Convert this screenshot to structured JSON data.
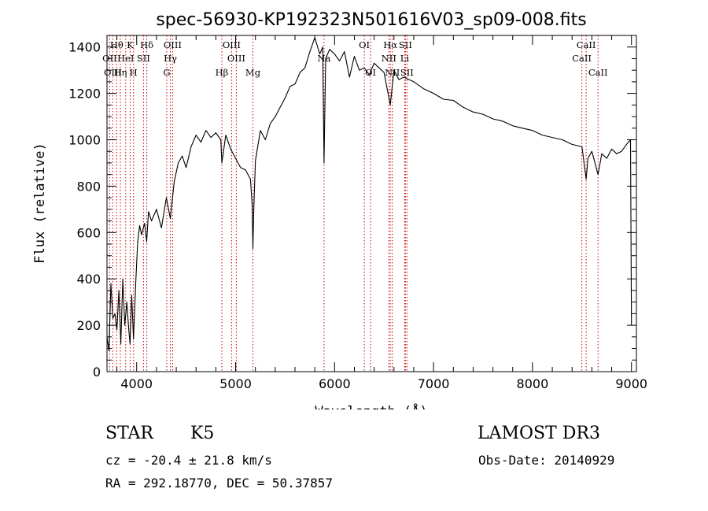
{
  "chart_data": {
    "type": "line",
    "title": "spec-56930-KP192323N501616V03_sp09-008.fits",
    "xlabel": "Wavelength (Å)",
    "ylabel": "Flux (relative)",
    "xlim": [
      3700,
      9050
    ],
    "ylim": [
      0,
      1450
    ],
    "xticks": [
      4000,
      5000,
      6000,
      7000,
      8000,
      9000
    ],
    "yticks": [
      0,
      200,
      400,
      600,
      800,
      1000,
      1200,
      1400
    ],
    "grid": false,
    "series": [
      {
        "x": [
          3700,
          3720,
          3740,
          3760,
          3780,
          3800,
          3820,
          3840,
          3860,
          3880,
          3900,
          3920,
          3933,
          3950,
          3968,
          3990,
          4010,
          4030,
          4050,
          4080,
          4101,
          4120,
          4150,
          4200,
          4250,
          4300,
          4340,
          4380,
          4420,
          4460,
          4500,
          4550,
          4600,
          4650,
          4700,
          4750,
          4800,
          4850,
          4861,
          4900,
          4950,
          5000,
          5050,
          5100,
          5150,
          5167,
          5175,
          5183,
          5200,
          5250,
          5300,
          5350,
          5400,
          5450,
          5500,
          5550,
          5600,
          5650,
          5700,
          5750,
          5800,
          5850,
          5880,
          5893,
          5910,
          5950,
          6000,
          6050,
          6100,
          6150,
          6200,
          6250,
          6300,
          6350,
          6400,
          6450,
          6500,
          6563,
          6600,
          6650,
          6700,
          6750,
          6800,
          6900,
          7000,
          7100,
          7200,
          7300,
          7400,
          7500,
          7600,
          7700,
          7800,
          7900,
          8000,
          8100,
          8200,
          8300,
          8400,
          8500,
          8542,
          8560,
          8600,
          8662,
          8700,
          8750,
          8800,
          8850,
          8900,
          8950,
          8990,
          9000
        ],
        "y": [
          150,
          90,
          380,
          230,
          250,
          180,
          350,
          120,
          400,
          200,
          300,
          180,
          120,
          330,
          140,
          380,
          560,
          630,
          590,
          640,
          560,
          690,
          650,
          700,
          620,
          750,
          660,
          820,
          900,
          930,
          880,
          970,
          1020,
          990,
          1040,
          1010,
          1030,
          1000,
          900,
          1020,
          960,
          920,
          880,
          870,
          830,
          720,
          530,
          700,
          910,
          1040,
          1000,
          1070,
          1100,
          1140,
          1180,
          1230,
          1240,
          1290,
          1310,
          1380,
          1440,
          1370,
          1400,
          900,
          1350,
          1390,
          1370,
          1340,
          1380,
          1270,
          1360,
          1300,
          1310,
          1280,
          1330,
          1310,
          1290,
          1150,
          1300,
          1260,
          1270,
          1260,
          1250,
          1220,
          1200,
          1175,
          1170,
          1140,
          1120,
          1110,
          1090,
          1080,
          1060,
          1050,
          1040,
          1020,
          1010,
          1000,
          980,
          970,
          830,
          920,
          950,
          850,
          940,
          920,
          960,
          940,
          950,
          980,
          1000,
          200
        ]
      }
    ],
    "lines": [
      {
        "name": "Hθ",
        "x": 3798,
        "row": 1
      },
      {
        "name": "OII",
        "x": 3727,
        "row": 2
      },
      {
        "name": "OIII",
        "x": 3760,
        "row": 3
      },
      {
        "name": "K",
        "x": 3934,
        "row": 1
      },
      {
        "name": "HeI",
        "x": 3889,
        "row": 2
      },
      {
        "name": "Hη",
        "x": 3835,
        "row": 3
      },
      {
        "name": "SII",
        "x": 4069,
        "row": 2
      },
      {
        "name": "H",
        "x": 3968,
        "row": 3
      },
      {
        "name": "Hδ",
        "x": 4102,
        "row": 1
      },
      {
        "name": "OIII",
        "x": 4363,
        "row": 1
      },
      {
        "name": "Hγ",
        "x": 4341,
        "row": 2
      },
      {
        "name": "G",
        "x": 4304,
        "row": 3
      },
      {
        "name": "Hβ",
        "x": 4861,
        "row": 3
      },
      {
        "name": "OIII",
        "x": 4959,
        "row": 1
      },
      {
        "name": "OIII",
        "x": 5007,
        "row": 2
      },
      {
        "name": "Mg",
        "x": 5175,
        "row": 3
      },
      {
        "name": "Na",
        "x": 5893,
        "row": 2
      },
      {
        "name": "OI",
        "x": 6300,
        "row": 1
      },
      {
        "name": "OI",
        "x": 6364,
        "row": 3
      },
      {
        "name": "Hα",
        "x": 6563,
        "row": 1
      },
      {
        "name": "NII",
        "x": 6548,
        "row": 2
      },
      {
        "name": "NII",
        "x": 6583,
        "row": 3
      },
      {
        "name": "SII",
        "x": 6716,
        "row": 1
      },
      {
        "name": "Li",
        "x": 6708,
        "row": 2
      },
      {
        "name": "SII",
        "x": 6731,
        "row": 3
      },
      {
        "name": "CaII",
        "x": 8542,
        "row": 1
      },
      {
        "name": "CaII",
        "x": 8498,
        "row": 2
      },
      {
        "name": "CaII",
        "x": 8662,
        "row": 3
      }
    ]
  },
  "info": {
    "object_class": "STAR",
    "subclass": "K5",
    "survey": "LAMOST DR3",
    "cz": "cz = -20.4 ± 21.8 km/s",
    "obs_date": "Obs-Date: 20140929",
    "radec": "RA = 292.18770, DEC =  50.37857"
  },
  "colors": {
    "spectrum": "#000000",
    "line_markers": "#cc0000"
  }
}
